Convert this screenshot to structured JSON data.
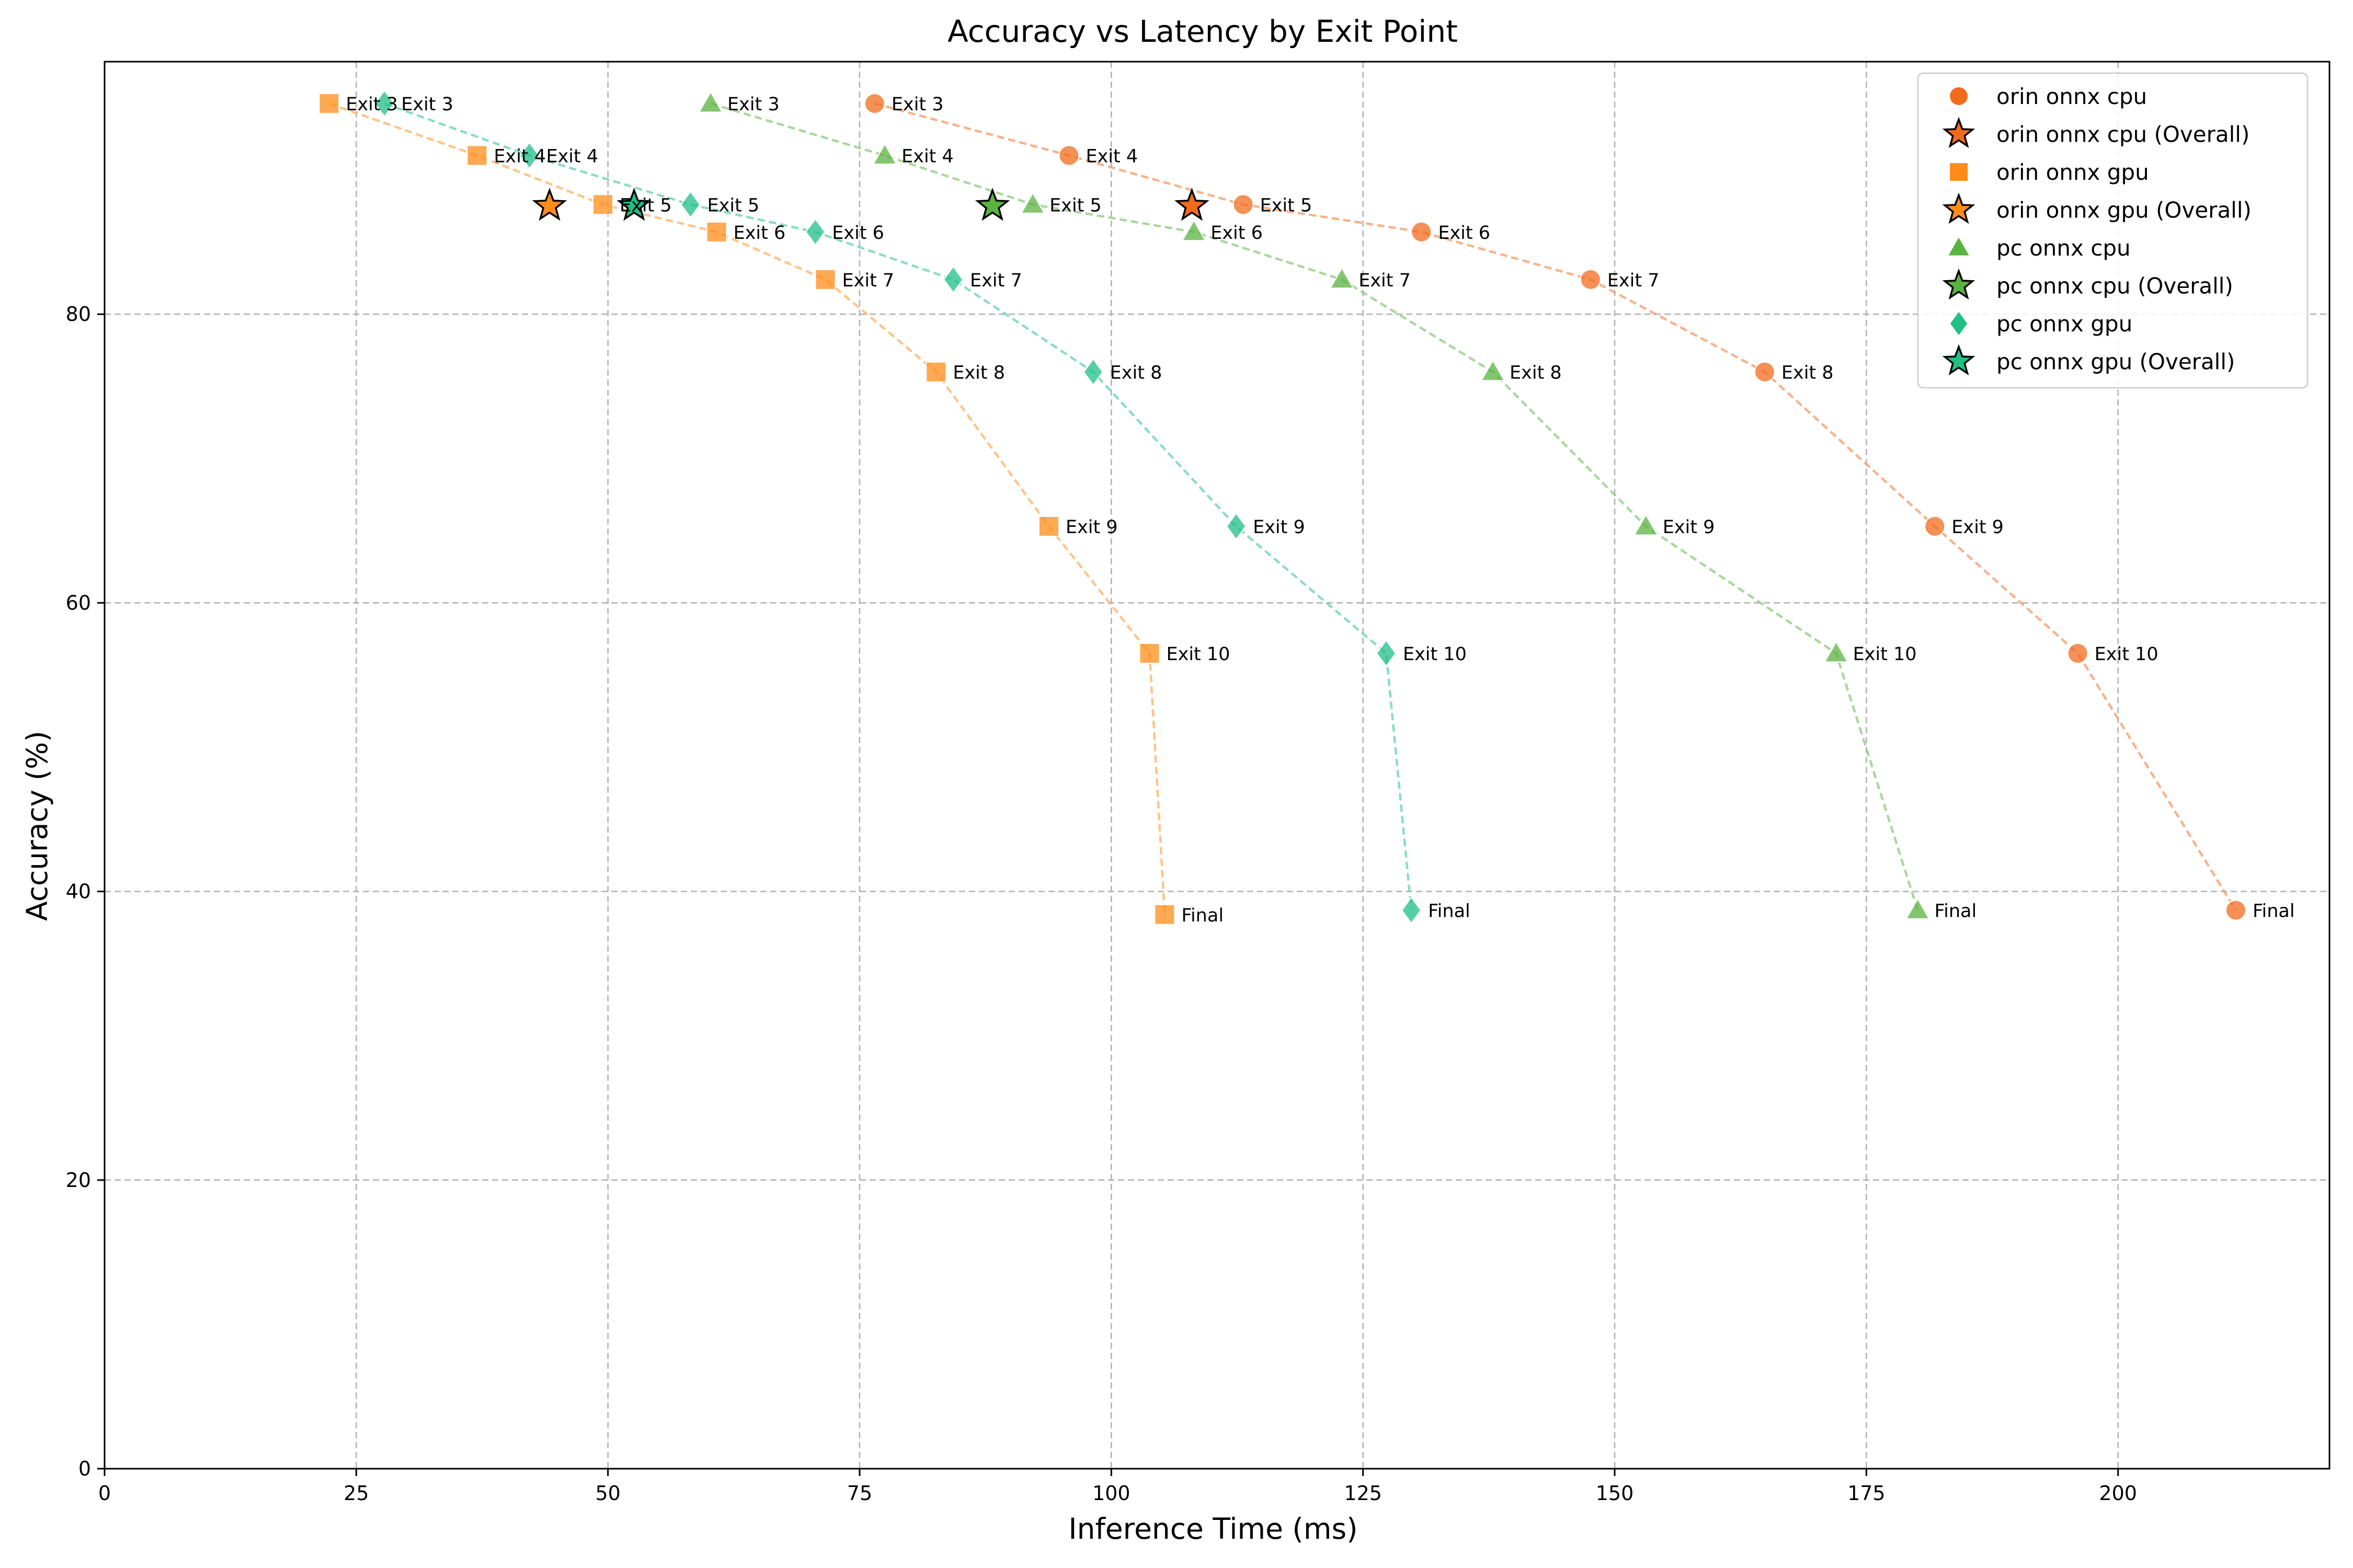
{
  "chart_data": {
    "type": "scatter",
    "title": "Accuracy vs Latency by Exit Point",
    "xlabel": "Inference Time (ms)",
    "ylabel": "Accuracy (%)",
    "xlim": [
      0,
      221
    ],
    "ylim": [
      0,
      97.5
    ],
    "xticks": [
      0,
      25,
      50,
      75,
      100,
      125,
      150,
      175,
      200
    ],
    "yticks": [
      0,
      20,
      40,
      60,
      80
    ],
    "grid": true,
    "legend_position": "upper right",
    "point_labels": [
      "Exit 3",
      "Exit 4",
      "Exit 5",
      "Exit 6",
      "Exit 7",
      "Exit 8",
      "Exit 9",
      "Exit 10",
      "Final"
    ],
    "series": [
      {
        "name": "orin onnx cpu",
        "overall_name": "orin onnx cpu (Overall)",
        "color": "#f26b1d",
        "marker": "circle",
        "x": [
          76.5,
          95.8,
          113.1,
          130.8,
          147.6,
          164.9,
          181.8,
          196.0,
          211.7
        ],
        "y": [
          94.6,
          91.0,
          87.6,
          85.7,
          82.4,
          76.0,
          65.3,
          56.5,
          38.7
        ],
        "overall": {
          "x": 108.0,
          "y": 87.5
        }
      },
      {
        "name": "orin onnx gpu",
        "overall_name": "orin onnx gpu (Overall)",
        "color": "#ff8c1a",
        "marker": "square",
        "x": [
          22.3,
          37.0,
          49.5,
          60.8,
          71.6,
          82.6,
          93.8,
          103.8,
          105.3
        ],
        "y": [
          94.6,
          91.0,
          87.6,
          85.7,
          82.4,
          76.0,
          65.3,
          56.5,
          38.4
        ],
        "overall": {
          "x": 44.2,
          "y": 87.5
        }
      },
      {
        "name": "pc onnx cpu",
        "overall_name": "pc onnx cpu (Overall)",
        "color": "#59b33f",
        "marker": "triangle",
        "x": [
          60.2,
          77.5,
          92.2,
          108.2,
          122.9,
          137.9,
          153.1,
          172.0,
          180.1
        ],
        "y": [
          94.6,
          91.0,
          87.6,
          85.7,
          82.4,
          76.0,
          65.3,
          56.5,
          38.7
        ],
        "overall": {
          "x": 88.2,
          "y": 87.5
        }
      },
      {
        "name": "pc onnx gpu",
        "overall_name": "pc onnx gpu (Overall)",
        "color": "#1fbf85",
        "marker": "diamond",
        "x": [
          27.8,
          42.2,
          58.2,
          70.6,
          84.3,
          98.2,
          112.4,
          127.3,
          129.8
        ],
        "y": [
          94.6,
          91.0,
          87.6,
          85.7,
          82.4,
          76.0,
          65.3,
          56.5,
          38.7
        ],
        "overall": {
          "x": 52.6,
          "y": 87.5
        }
      }
    ]
  }
}
